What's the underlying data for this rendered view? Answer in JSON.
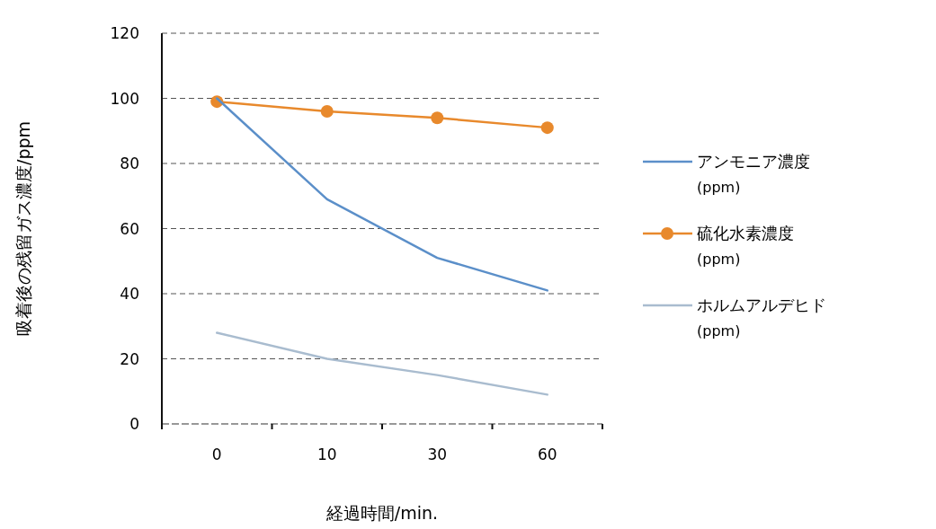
{
  "chart_data": {
    "type": "line",
    "xlabel": "経過時間/min.",
    "ylabel": "吸着後の残留ガス濃度/ppm",
    "categories": [
      "0",
      "10",
      "30",
      "60"
    ],
    "ylim": [
      0,
      120
    ],
    "yticks": [
      0,
      20,
      40,
      60,
      80,
      100,
      120
    ],
    "grid": "y",
    "legend": "right",
    "series": [
      {
        "name": "アンモニア濃度(ppm)",
        "color": "#5b8fc9",
        "values": [
          100,
          69,
          51,
          41
        ],
        "marker": "none"
      },
      {
        "name": "硫化水素濃度(ppm)",
        "color": "#e8892c",
        "values": [
          99,
          96,
          94,
          91
        ],
        "marker": "circle"
      },
      {
        "name": "ホルムアルデヒド(ppm)",
        "color": "#a9bccf",
        "values": [
          28,
          20,
          15,
          9
        ],
        "marker": "none"
      }
    ]
  }
}
